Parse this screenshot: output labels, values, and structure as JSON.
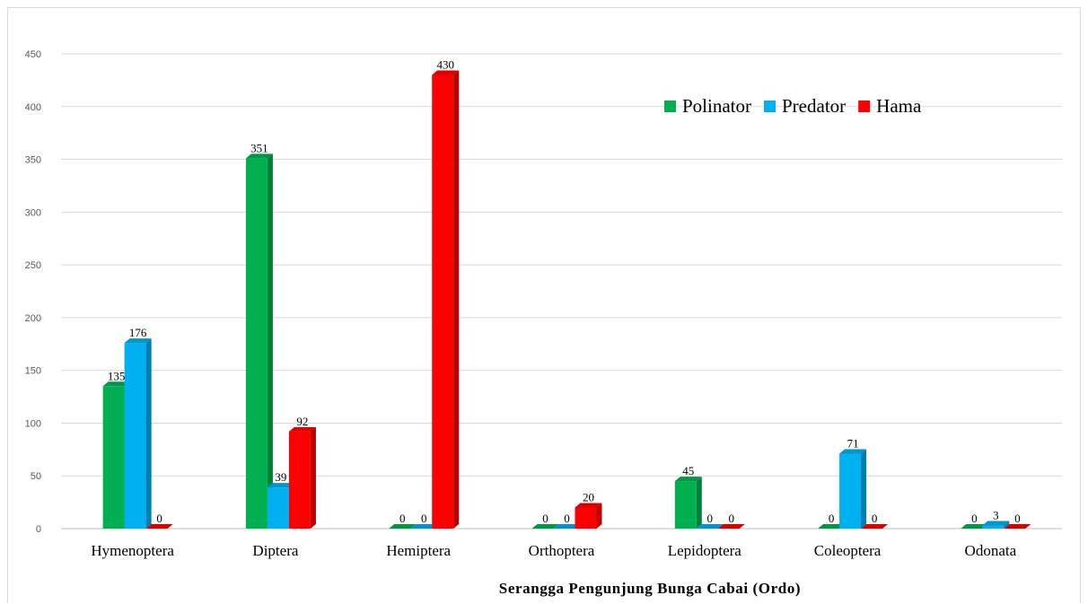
{
  "chart_data": {
    "type": "bar",
    "title": "",
    "xlabel": "Serangga Pengunjung Bunga Cabai (Ordo)",
    "ylabel": "",
    "ylim": [
      0,
      450
    ],
    "yticks": [
      0,
      50,
      100,
      150,
      200,
      250,
      300,
      350,
      400,
      450
    ],
    "grid": true,
    "legend_position": "top-right",
    "categories": [
      "Hymenoptera",
      "Diptera",
      "Hemiptera",
      "Orthoptera",
      "Lepidoptera",
      "Coleoptera",
      "Odonata"
    ],
    "series": [
      {
        "name": "Polinator",
        "color": "#00b050",
        "values": [
          135,
          351,
          0,
          0,
          45,
          0,
          0
        ]
      },
      {
        "name": "Predator",
        "color": "#00b0f0",
        "values": [
          176,
          39,
          0,
          0,
          0,
          71,
          3
        ]
      },
      {
        "name": "Hama",
        "color": "#ff0000",
        "values": [
          0,
          92,
          430,
          20,
          0,
          0,
          0
        ]
      }
    ]
  }
}
